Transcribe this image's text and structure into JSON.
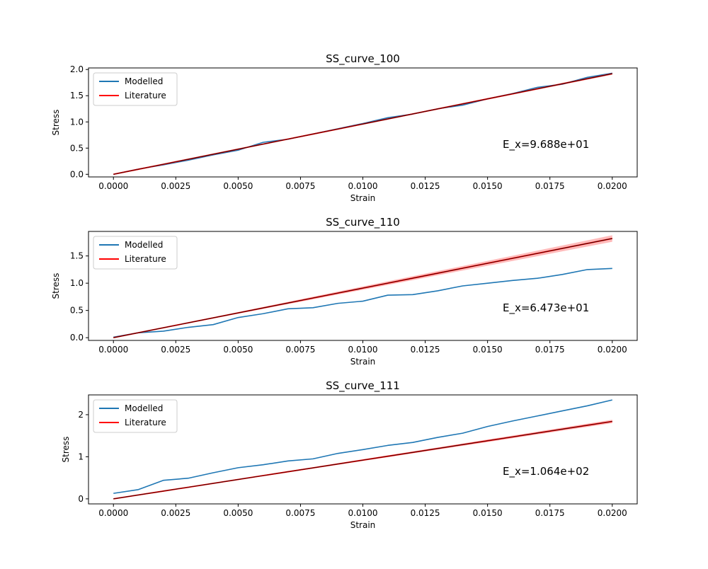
{
  "colors": {
    "modelled": "#1f77b4",
    "literature": "#ff0000",
    "literature_band": "#ff9c9c",
    "axes": "#000000"
  },
  "chart_data": [
    {
      "type": "line",
      "title": "SS_curve_100",
      "xlabel": "Strain",
      "ylabel": "Stress",
      "xlim": [
        -0.001,
        0.021
      ],
      "ylim": [
        -0.05,
        2.03
      ],
      "xticks": [
        0.0,
        0.0025,
        0.005,
        0.0075,
        0.01,
        0.0125,
        0.015,
        0.0175,
        0.02
      ],
      "xtick_labels": [
        "0.0000",
        "0.0025",
        "0.0050",
        "0.0075",
        "0.0100",
        "0.0125",
        "0.0150",
        "0.0175",
        "0.0200"
      ],
      "yticks": [
        0.0,
        0.5,
        1.0,
        1.5,
        2.0
      ],
      "ytick_labels": [
        "0.0",
        "0.5",
        "1.0",
        "1.5",
        "2.0"
      ],
      "legend": {
        "placement": "upper-left",
        "entries": [
          "Modelled",
          "Literature"
        ]
      },
      "annotation": "E_x=9.688e+01",
      "grid": false,
      "x": [
        0.0,
        0.001,
        0.002,
        0.003,
        0.004,
        0.005,
        0.006,
        0.007,
        0.008,
        0.009,
        0.01,
        0.011,
        0.012,
        0.013,
        0.014,
        0.015,
        0.016,
        0.017,
        0.018,
        0.019,
        0.02
      ],
      "series": [
        {
          "name": "Modelled",
          "color": "#1f77b4",
          "values": [
            0.0,
            0.1,
            0.18,
            0.27,
            0.37,
            0.46,
            0.61,
            0.67,
            0.77,
            0.87,
            0.97,
            1.08,
            1.15,
            1.25,
            1.32,
            1.44,
            1.54,
            1.66,
            1.72,
            1.85,
            1.93
          ]
        },
        {
          "name": "Literature",
          "color": "#ff0000",
          "values": [
            0.0,
            0.096,
            0.192,
            0.288,
            0.384,
            0.48,
            0.576,
            0.672,
            0.768,
            0.864,
            0.96,
            1.056,
            1.152,
            1.248,
            1.344,
            1.44,
            1.536,
            1.632,
            1.728,
            1.824,
            1.92
          ],
          "band_halfwidth_at_max": 0.02
        }
      ]
    },
    {
      "type": "line",
      "title": "SS_curve_110",
      "xlabel": "Strain",
      "ylabel": "Stress",
      "xlim": [
        -0.001,
        0.021
      ],
      "ylim": [
        -0.05,
        1.95
      ],
      "xticks": [
        0.0,
        0.0025,
        0.005,
        0.0075,
        0.01,
        0.0125,
        0.015,
        0.0175,
        0.02
      ],
      "xtick_labels": [
        "0.0000",
        "0.0025",
        "0.0050",
        "0.0075",
        "0.0100",
        "0.0125",
        "0.0150",
        "0.0175",
        "0.0200"
      ],
      "yticks": [
        0.0,
        0.5,
        1.0,
        1.5
      ],
      "ytick_labels": [
        "0.0",
        "0.5",
        "1.0",
        "1.5"
      ],
      "legend": {
        "placement": "upper-left",
        "entries": [
          "Modelled",
          "Literature"
        ]
      },
      "annotation": "E_x=6.473e+01",
      "grid": false,
      "x": [
        0.0,
        0.001,
        0.002,
        0.003,
        0.004,
        0.005,
        0.006,
        0.007,
        0.008,
        0.009,
        0.01,
        0.011,
        0.012,
        0.013,
        0.014,
        0.015,
        0.016,
        0.017,
        0.018,
        0.019,
        0.02
      ],
      "series": [
        {
          "name": "Modelled",
          "color": "#1f77b4",
          "values": [
            0.01,
            0.09,
            0.12,
            0.19,
            0.24,
            0.37,
            0.44,
            0.53,
            0.55,
            0.63,
            0.67,
            0.78,
            0.79,
            0.86,
            0.95,
            1.0,
            1.05,
            1.09,
            1.16,
            1.25,
            1.27
          ]
        },
        {
          "name": "Literature",
          "color": "#ff0000",
          "values": [
            0.0,
            0.091,
            0.182,
            0.273,
            0.364,
            0.455,
            0.546,
            0.637,
            0.728,
            0.819,
            0.91,
            1.001,
            1.092,
            1.183,
            1.274,
            1.365,
            1.456,
            1.547,
            1.638,
            1.729,
            1.82
          ],
          "band_halfwidth_at_max": 0.06
        }
      ]
    },
    {
      "type": "line",
      "title": "SS_curve_111",
      "xlabel": "Strain",
      "ylabel": "Stress",
      "xlim": [
        -0.001,
        0.021
      ],
      "ylim": [
        -0.12,
        2.47
      ],
      "xticks": [
        0.0,
        0.0025,
        0.005,
        0.0075,
        0.01,
        0.0125,
        0.015,
        0.0175,
        0.02
      ],
      "xtick_labels": [
        "0.0000",
        "0.0025",
        "0.0050",
        "0.0075",
        "0.0100",
        "0.0125",
        "0.0150",
        "0.0175",
        "0.0200"
      ],
      "yticks": [
        0,
        1,
        2
      ],
      "ytick_labels": [
        "0",
        "1",
        "2"
      ],
      "legend": {
        "placement": "upper-left",
        "entries": [
          "Modelled",
          "Literature"
        ]
      },
      "annotation": "E_x=1.064e+02",
      "grid": false,
      "x": [
        0.0,
        0.001,
        0.002,
        0.003,
        0.004,
        0.005,
        0.006,
        0.007,
        0.008,
        0.009,
        0.01,
        0.011,
        0.012,
        0.013,
        0.014,
        0.015,
        0.016,
        0.017,
        0.018,
        0.019,
        0.02
      ],
      "series": [
        {
          "name": "Modelled",
          "color": "#1f77b4",
          "values": [
            0.13,
            0.22,
            0.44,
            0.49,
            0.62,
            0.74,
            0.81,
            0.9,
            0.95,
            1.08,
            1.17,
            1.27,
            1.34,
            1.46,
            1.56,
            1.72,
            1.85,
            1.97,
            2.09,
            2.21,
            2.35
          ]
        },
        {
          "name": "Literature",
          "color": "#ff0000",
          "values": [
            0.0,
            0.092,
            0.184,
            0.276,
            0.368,
            0.46,
            0.552,
            0.644,
            0.736,
            0.828,
            0.92,
            1.012,
            1.104,
            1.196,
            1.288,
            1.38,
            1.472,
            1.564,
            1.656,
            1.748,
            1.84
          ],
          "band_halfwidth_at_max": 0.04
        }
      ]
    }
  ]
}
